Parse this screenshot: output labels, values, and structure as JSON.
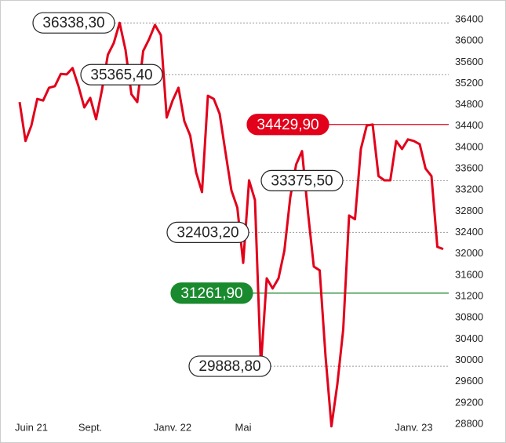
{
  "chart_data": {
    "type": "line",
    "categories": [
      null,
      null,
      "Juin 21",
      null,
      null,
      null,
      null,
      null,
      null,
      null,
      null,
      null,
      "Sept.",
      null,
      null,
      null,
      null,
      null,
      null,
      null,
      null,
      null,
      null,
      null,
      null,
      null,
      "Janv. 22",
      null,
      null,
      null,
      null,
      null,
      null,
      null,
      null,
      null,
      null,
      null,
      "Mai",
      null,
      null,
      null,
      null,
      null,
      null,
      null,
      null,
      null,
      null,
      null,
      null,
      null,
      null,
      null,
      null,
      null,
      null,
      null,
      null,
      null,
      null,
      null,
      null,
      null,
      null,
      null,
      null,
      "Janv. 23",
      null,
      null,
      null,
      null,
      null
    ],
    "series": [
      {
        "color": "#e2001a",
        "values": [
          34850,
          34120,
          34410,
          34910,
          34880,
          35120,
          35150,
          35380,
          35370,
          35490,
          35150,
          34750,
          34930,
          34530,
          35080,
          35740,
          35960,
          36338.3,
          35830,
          35000,
          34850,
          35810,
          36030,
          36300,
          36110,
          34560,
          34880,
          35120,
          34490,
          34220,
          33530,
          33160,
          34970,
          34910,
          34630,
          33900,
          33190,
          32870,
          31830,
          33380,
          33010,
          29888.8,
          31540,
          31350,
          31540,
          32060,
          33060,
          33680,
          33930,
          32790,
          31760,
          31690,
          30070,
          28760,
          29550,
          30580,
          32720,
          32650,
          33970,
          34410,
          34429.9,
          33460,
          33380,
          33380,
          34120,
          33970,
          34150,
          34120,
          34060,
          33600,
          33460,
          32130,
          32090
        ]
      }
    ],
    "ylim": [
      28700,
      36520
    ],
    "yticks": [
      28800,
      29200,
      29600,
      30000,
      30400,
      30800,
      31200,
      31600,
      32000,
      32400,
      32800,
      33200,
      33600,
      34000,
      34400,
      34800,
      35200,
      35600,
      36000,
      36400
    ],
    "annotations": [
      {
        "value": 36338.3,
        "label": "36338,30",
        "style": "dotted"
      },
      {
        "value": 35365.4,
        "label": "35365,40",
        "style": "dotted"
      },
      {
        "value": 34429.9,
        "label": "34429,90",
        "style": "solid",
        "color": "#e2001a"
      },
      {
        "value": 33375.5,
        "label": "33375,50",
        "style": "dotted"
      },
      {
        "value": 32403.2,
        "label": "32403,20",
        "style": "dotted"
      },
      {
        "value": 31261.9,
        "label": "31261,90",
        "style": "solid",
        "color": "#1a8a2e"
      },
      {
        "value": 29888.8,
        "label": "29888,80",
        "style": "dotted"
      }
    ]
  }
}
